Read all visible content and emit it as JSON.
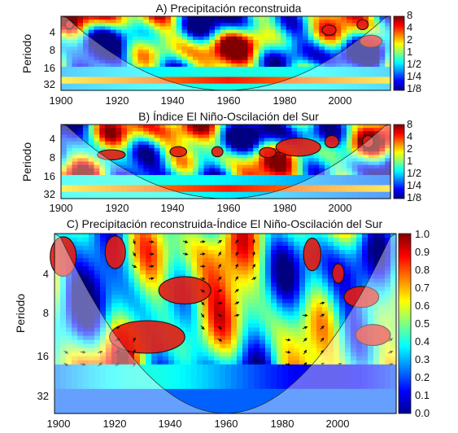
{
  "chart_data": [
    {
      "type": "heatmap",
      "title": "A) Precipitación reconstruida",
      "ylabel": "Periodo",
      "xlabel": "",
      "x_ticks": [
        1900,
        1920,
        1940,
        1960,
        1980,
        2000
      ],
      "xlim": [
        1900,
        2018
      ],
      "y_ticks": [
        4,
        8,
        16,
        32
      ],
      "ylim_period": [
        2,
        40
      ],
      "y_scale": "log2",
      "colorbar": {
        "labels": [
          "8",
          "4",
          "2",
          "1",
          "1/2",
          "1/4",
          "1/8"
        ],
        "scale": "log2",
        "range": [
          0.125,
          8
        ]
      },
      "grid": false,
      "significant_regions": [
        {
          "x_center": 1903,
          "period_center": 2.8,
          "x_half_width": 1.5,
          "period_factor": 1.12
        },
        {
          "x_center": 1996,
          "period_center": 3.5,
          "x_half_width": 2.5,
          "period_factor": 1.15
        },
        {
          "x_center": 2008,
          "period_center": 2.8,
          "x_half_width": 2.0,
          "period_factor": 1.15
        },
        {
          "x_center": 2011,
          "period_center": 5.5,
          "x_half_width": 4.0,
          "period_factor": 1.2
        }
      ]
    },
    {
      "type": "heatmap",
      "title": "B) Índice El Niño-Oscilación del Sur",
      "ylabel": "Periodo",
      "xlabel": "",
      "x_ticks": [
        1900,
        1920,
        1940,
        1960,
        1980,
        2000
      ],
      "xlim": [
        1900,
        2018
      ],
      "y_ticks": [
        4,
        8,
        16,
        32
      ],
      "ylim_period": [
        2,
        40
      ],
      "y_scale": "log2",
      "colorbar": {
        "labels": [
          "8",
          "4",
          "2",
          "1",
          "1/2",
          "1/4",
          "1/8"
        ],
        "scale": "log2",
        "range": [
          0.125,
          8
        ]
      },
      "grid": false,
      "significant_regions": [
        {
          "x_center": 1918,
          "period_center": 6.8,
          "x_half_width": 5.0,
          "period_factor": 1.15
        },
        {
          "x_center": 1942,
          "period_center": 6.0,
          "x_half_width": 3.0,
          "period_factor": 1.15
        },
        {
          "x_center": 1956,
          "period_center": 6.0,
          "x_half_width": 2.0,
          "period_factor": 1.15
        },
        {
          "x_center": 1974,
          "period_center": 6.2,
          "x_half_width": 3.0,
          "period_factor": 1.15
        },
        {
          "x_center": 1985,
          "period_center": 5.0,
          "x_half_width": 8.0,
          "period_factor": 1.35
        },
        {
          "x_center": 1997,
          "period_center": 4.0,
          "x_half_width": 2.5,
          "period_factor": 1.2
        },
        {
          "x_center": 2010,
          "period_center": 4.0,
          "x_half_width": 2.0,
          "period_factor": 1.2
        }
      ]
    },
    {
      "type": "heatmap",
      "title": "C) Precipitación reconstruida-Índice El Niño-Oscilación del Sur",
      "ylabel": "Periodo",
      "xlabel": "",
      "x_ticks": [
        1900,
        1920,
        1940,
        1960,
        1980,
        2000
      ],
      "xlim": [
        1900,
        2018
      ],
      "y_ticks": [
        4,
        8,
        16,
        32
      ],
      "ylim_period": [
        1.5,
        60
      ],
      "y_scale": "log2",
      "colorbar": {
        "labels": [
          "1.0",
          "0.9",
          "0.8",
          "0.7",
          "0.6",
          "0.5",
          "0.4",
          "0.3",
          "0.2",
          "0.1",
          "0.0"
        ],
        "scale": "linear",
        "range": [
          0,
          1
        ]
      },
      "grid": false,
      "significant_regions": [
        {
          "x_center": 1903,
          "period_center": 2.4,
          "x_half_width": 4.5,
          "period_factor": 1.45
        },
        {
          "x_center": 1921,
          "period_center": 2.2,
          "x_half_width": 3.5,
          "period_factor": 1.35
        },
        {
          "x_center": 1945,
          "period_center": 4.8,
          "x_half_width": 9.0,
          "period_factor": 1.28
        },
        {
          "x_center": 1989,
          "period_center": 2.3,
          "x_half_width": 3.0,
          "period_factor": 1.35
        },
        {
          "x_center": 1998,
          "period_center": 3.4,
          "x_half_width": 2.0,
          "period_factor": 1.18
        },
        {
          "x_center": 2006,
          "period_center": 5.5,
          "x_half_width": 6.0,
          "period_factor": 1.2
        },
        {
          "x_center": 1932,
          "period_center": 12.5,
          "x_half_width": 13.0,
          "period_factor": 1.35
        },
        {
          "x_center": 2010,
          "period_center": 12.0,
          "x_half_width": 6.0,
          "period_factor": 1.2
        }
      ]
    }
  ]
}
